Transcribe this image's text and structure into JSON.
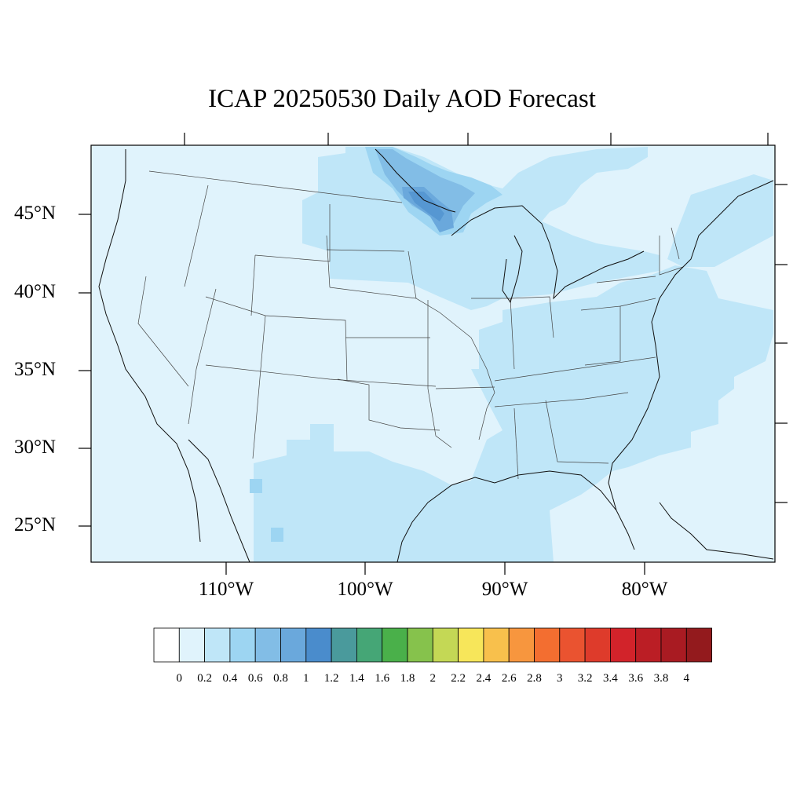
{
  "map": {
    "title": "ICAP 20250530 Daily AOD Forecast",
    "lat_labels": [
      "45°N",
      "40°N",
      "35°N",
      "30°N",
      "25°N"
    ],
    "lon_labels": [
      "110°W",
      "100°W",
      "90°W",
      "80°W"
    ]
  },
  "colorbar": {
    "labels": [
      "0",
      "0.2",
      "0.4",
      "0.6",
      "0.8",
      "1",
      "1.2",
      "1.4",
      "1.6",
      "1.8",
      "2",
      "2.2",
      "2.4",
      "2.6",
      "2.8",
      "3",
      "3.2",
      "3.4",
      "3.6",
      "3.8",
      "4"
    ],
    "colors": [
      "#ffffff",
      "#e0f3fc",
      "#bfe6f8",
      "#9dd5f2",
      "#82bde6",
      "#6aa8dc",
      "#4a8ccc",
      "#4a9a9c",
      "#45a676",
      "#4ab04a",
      "#86c24c",
      "#c4d855",
      "#f7e65a",
      "#f8c04c",
      "#f7963e",
      "#f36e30",
      "#ea5330",
      "#de3b2b",
      "#d2232a",
      "#bb1e25",
      "#a91b22",
      "#931a1d"
    ]
  },
  "field_colors": {
    "low": "#e0f3fc",
    "medium": "#bfe6f8",
    "high": "#9dd5f2",
    "higher": "#82bde6",
    "peak": "#4a8ccc"
  }
}
